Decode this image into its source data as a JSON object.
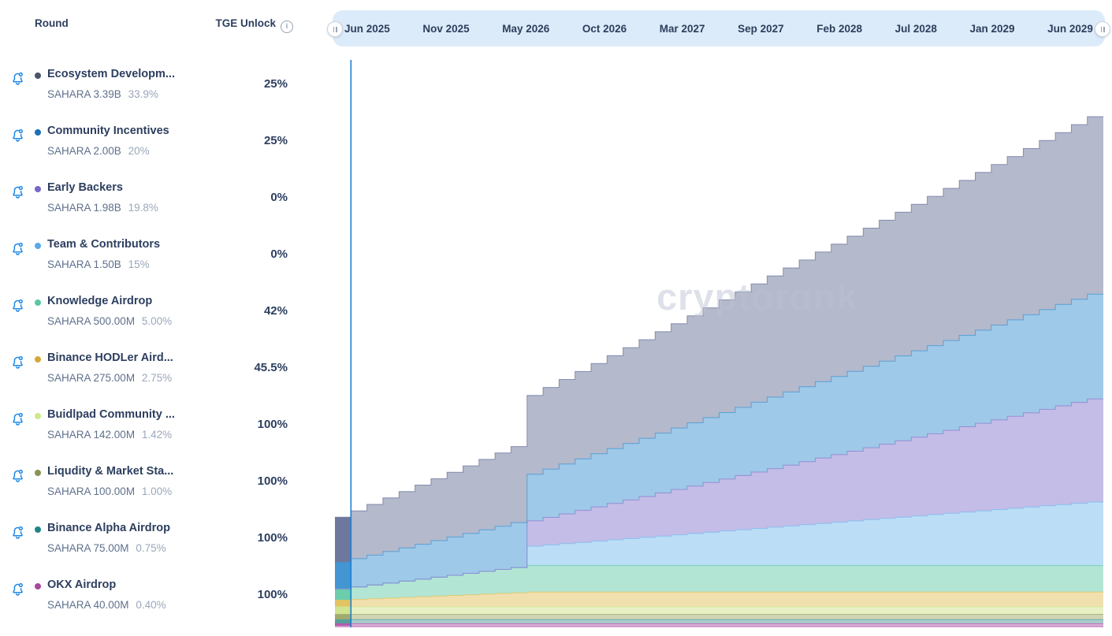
{
  "token": "SAHARA",
  "header": {
    "round": "Round",
    "tge_unlock": "TGE Unlock",
    "info_icon": "i"
  },
  "timeline": {
    "ticks": [
      "Jun 2025",
      "Nov 2025",
      "May 2026",
      "Oct 2026",
      "Mar 2027",
      "Sep 2027",
      "Feb 2028",
      "Jul 2028",
      "Jan 2029",
      "Jun 2029"
    ]
  },
  "watermark": "cryptorɑnk",
  "today_marker": {
    "month_index": 1,
    "color": "#1c7ed6"
  },
  "rounds": [
    {
      "name": "Ecosystem Developm...",
      "amount": "SAHARA 3.39B",
      "supply_pct": "33.9%",
      "tge_unlock": "25%",
      "color": "#4a5568"
    },
    {
      "name": "Community Incentives",
      "amount": "SAHARA 2.00B",
      "supply_pct": "20%",
      "tge_unlock": "25%",
      "color": "#1d6fb8"
    },
    {
      "name": "Early Backers",
      "amount": "SAHARA 1.98B",
      "supply_pct": "19.8%",
      "tge_unlock": "0%",
      "color": "#7668c8"
    },
    {
      "name": "Team & Contributors",
      "amount": "SAHARA 1.50B",
      "supply_pct": "15%",
      "tge_unlock": "0%",
      "color": "#5aa9e8"
    },
    {
      "name": "Knowledge Airdrop",
      "amount": "SAHARA 500.00M",
      "supply_pct": "5.00%",
      "tge_unlock": "42%",
      "color": "#57c9a0"
    },
    {
      "name": "Binance HODLer Aird...",
      "amount": "SAHARA 275.00M",
      "supply_pct": "2.75%",
      "tge_unlock": "45.5%",
      "color": "#d4a938"
    },
    {
      "name": "Buidlpad Community ...",
      "amount": "SAHARA 142.00M",
      "supply_pct": "1.42%",
      "tge_unlock": "100%",
      "color": "#cde98a"
    },
    {
      "name": "Liqudity & Market Sta...",
      "amount": "SAHARA 100.00M",
      "supply_pct": "1.00%",
      "tge_unlock": "100%",
      "color": "#8a9355"
    },
    {
      "name": "Binance Alpha Airdrop",
      "amount": "SAHARA 75.00M",
      "supply_pct": "0.75%",
      "tge_unlock": "100%",
      "color": "#1d8585"
    },
    {
      "name": "OKX Airdrop",
      "amount": "SAHARA 40.00M",
      "supply_pct": "0.40%",
      "tge_unlock": "100%",
      "color": "#a8479e"
    }
  ],
  "chart_data": {
    "type": "area",
    "stacked": true,
    "step_interpolation": "monthly",
    "unit": "SAHARA tokens unlocked (billions)",
    "total_supply_b": 10.0,
    "x_axis": {
      "start": "Jun 2025",
      "end": "Jun 2029",
      "step_months": 1,
      "total_months": 48,
      "tick_labels": [
        "Jun 2025",
        "Nov 2025",
        "May 2026",
        "Oct 2026",
        "Mar 2027",
        "Sep 2027",
        "Feb 2028",
        "Jul 2028",
        "Jan 2029",
        "Jun 2029"
      ]
    },
    "y_axis": {
      "visible": false,
      "range_b": [
        0,
        10.0
      ]
    },
    "legend_position": "left-panel",
    "grid": false,
    "series": [
      {
        "name": "OKX Airdrop",
        "total_b": 0.04,
        "color": "#b259a9",
        "vesting": {
          "tge_pct": 100
        },
        "unlocked_pct_at_months": {
          "0": 100,
          "12": 100,
          "24": 100,
          "36": 100,
          "48": 100
        }
      },
      {
        "name": "Binance Alpha Airdrop",
        "total_b": 0.075,
        "color": "#4f9e9b",
        "vesting": {
          "tge_pct": 100
        },
        "unlocked_pct_at_months": {
          "0": 100,
          "12": 100,
          "24": 100,
          "36": 100,
          "48": 100
        }
      },
      {
        "name": "Liqudity & Market Sta...",
        "total_b": 0.1,
        "color": "#9fa96c",
        "vesting": {
          "tge_pct": 100
        },
        "unlocked_pct_at_months": {
          "0": 100,
          "12": 100,
          "24": 100,
          "36": 100,
          "48": 100
        }
      },
      {
        "name": "Buidlpad Community ...",
        "total_b": 0.142,
        "color": "#cfe18c",
        "vesting": {
          "tge_pct": 100
        },
        "unlocked_pct_at_months": {
          "0": 100,
          "12": 100,
          "24": 100,
          "36": 100,
          "48": 100
        }
      },
      {
        "name": "Binance HODLer Aird...",
        "total_b": 0.275,
        "color": "#e2c25e",
        "vesting": {
          "tge_pct": 45.5,
          "linear_to_month": 12
        },
        "unlocked_pct_at_months": {
          "0": 45.5,
          "12": 100,
          "24": 100,
          "36": 100,
          "48": 100
        }
      },
      {
        "name": "Knowledge Airdrop",
        "total_b": 0.5,
        "color": "#67cbaa",
        "vesting": {
          "tge_pct": 42,
          "linear_to_month": 12
        },
        "unlocked_pct_at_months": {
          "0": 42,
          "12": 100,
          "24": 100,
          "36": 100,
          "48": 100
        }
      },
      {
        "name": "Team & Contributors",
        "total_b": 1.5,
        "color": "#78bbee",
        "vesting": {
          "tge_pct": 0,
          "cliff_month": 12,
          "cliff_unlock_pct": 24.3,
          "monthly_pct": 1.58
        },
        "unlocked_pct_at_months": {
          "0": 0,
          "12": 24.3,
          "24": 43.3,
          "36": 62.2,
          "48": 81.2
        }
      },
      {
        "name": "Early Backers",
        "total_b": 1.98,
        "color": "#8a7ccf",
        "vesting": {
          "tge_pct": 0,
          "cliff_month": 12,
          "cliff_unlock_pct": 24,
          "linear_to_month": 48
        },
        "unlocked_pct_at_months": {
          "0": 0,
          "12": 24,
          "24": 49.3,
          "36": 74.7,
          "48": 100
        }
      },
      {
        "name": "Community Incentives",
        "total_b": 2.0,
        "color": "#3f94d1",
        "vesting": {
          "tge_pct": 25,
          "linear_to_month": 48
        },
        "unlocked_pct_at_months": {
          "0": 25,
          "12": 43.8,
          "24": 62.5,
          "36": 81.3,
          "48": 100
        }
      },
      {
        "name": "Ecosystem Development",
        "total_b": 3.39,
        "color": "#6a7499",
        "vesting": {
          "tge_pct": 25,
          "linear_to_month": 48
        },
        "unlocked_pct_at_months": {
          "0": 25,
          "12": 43.8,
          "24": 62.5,
          "36": 81.3,
          "48": 100
        }
      }
    ]
  }
}
